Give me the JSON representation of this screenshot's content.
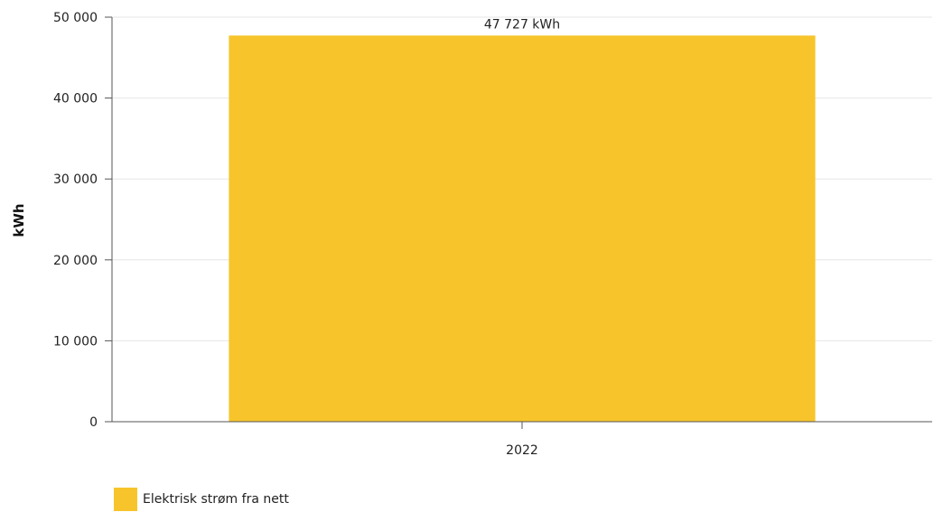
{
  "chart_data": {
    "type": "bar",
    "categories": [
      "2022"
    ],
    "series": [
      {
        "name": "Elektrisk strøm fra nett",
        "values": [
          47727
        ],
        "color": "#F7C52B"
      }
    ],
    "data_labels": [
      "47 727 kWh"
    ],
    "ylabel": "kWh",
    "xlabel": "",
    "ylim": [
      0,
      50000
    ],
    "yticks": [
      0,
      10000,
      20000,
      30000,
      40000,
      50000
    ],
    "ytick_labels": [
      "0",
      "10 000",
      "20 000",
      "30 000",
      "40 000",
      "50 000"
    ],
    "grid": true,
    "legend_position": "bottom-left"
  }
}
